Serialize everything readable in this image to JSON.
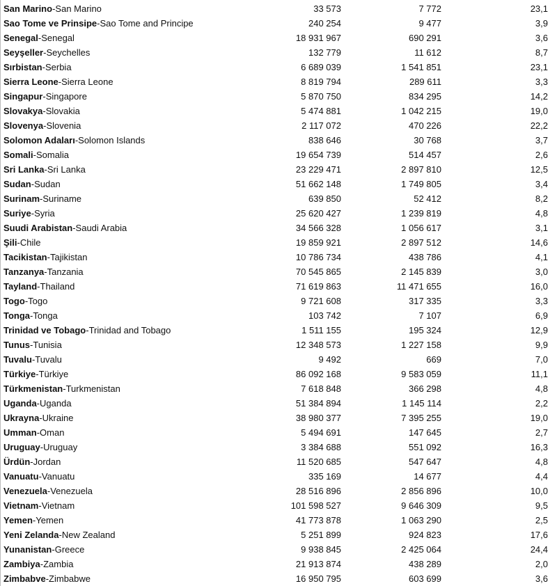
{
  "table": {
    "rows": [
      {
        "tr": "San Marino",
        "en": "San Marino",
        "population": "33 573",
        "value": "7 772",
        "percent": "23,1"
      },
      {
        "tr": "Sao Tome ve Prinsipe",
        "en": "Sao Tome and Principe",
        "population": "240 254",
        "value": "9 477",
        "percent": "3,9"
      },
      {
        "tr": "Senegal",
        "en": "Senegal",
        "population": "18 931 967",
        "value": "690 291",
        "percent": "3,6"
      },
      {
        "tr": "Seyşeller",
        "en": "Seychelles",
        "population": "132 779",
        "value": "11 612",
        "percent": "8,7"
      },
      {
        "tr": "Sırbistan",
        "en": "Serbia",
        "population": "6 689 039",
        "value": "1 541 851",
        "percent": "23,1"
      },
      {
        "tr": "Sierra Leone",
        "en": "Sierra Leone",
        "population": "8 819 794",
        "value": "289 611",
        "percent": "3,3"
      },
      {
        "tr": "Singapur",
        "en": "Singapore",
        "population": "5 870 750",
        "value": "834 295",
        "percent": "14,2"
      },
      {
        "tr": "Slovakya",
        "en": "Slovakia",
        "population": "5 474 881",
        "value": "1 042 215",
        "percent": "19,0"
      },
      {
        "tr": "Slovenya",
        "en": "Slovenia",
        "population": "2 117 072",
        "value": "470 226",
        "percent": "22,2"
      },
      {
        "tr": "Solomon Adaları",
        "en": "Solomon Islands",
        "population": "838 646",
        "value": "30 768",
        "percent": "3,7"
      },
      {
        "tr": "Somali",
        "en": "Somalia",
        "population": "19 654 739",
        "value": "514 457",
        "percent": "2,6"
      },
      {
        "tr": "Sri Lanka",
        "en": "Sri Lanka",
        "population": "23 229 471",
        "value": "2 897 810",
        "percent": "12,5"
      },
      {
        "tr": "Sudan",
        "en": "Sudan",
        "population": "51 662 148",
        "value": "1 749 805",
        "percent": "3,4"
      },
      {
        "tr": "Surinam",
        "en": "Suriname",
        "population": "639 850",
        "value": "52 412",
        "percent": "8,2"
      },
      {
        "tr": "Suriye",
        "en": "Syria",
        "population": "25 620 427",
        "value": "1 239 819",
        "percent": "4,8"
      },
      {
        "tr": "Suudi Arabistan",
        "en": "Saudi Arabia",
        "population": "34 566 328",
        "value": "1 056 617",
        "percent": "3,1"
      },
      {
        "tr": "Şili",
        "en": "Chile",
        "population": "19 859 921",
        "value": "2 897 512",
        "percent": "14,6"
      },
      {
        "tr": "Tacikistan",
        "en": "Tajikistan",
        "population": "10 786 734",
        "value": "438 786",
        "percent": "4,1"
      },
      {
        "tr": "Tanzanya",
        "en": "Tanzania",
        "population": "70 545 865",
        "value": "2 145 839",
        "percent": "3,0"
      },
      {
        "tr": "Tayland",
        "en": "Thailand",
        "population": "71 619 863",
        "value": "11 471 655",
        "percent": "16,0"
      },
      {
        "tr": "Togo",
        "en": "Togo",
        "population": "9 721 608",
        "value": "317 335",
        "percent": "3,3"
      },
      {
        "tr": "Tonga",
        "en": "Tonga",
        "population": "103 742",
        "value": "7 107",
        "percent": "6,9"
      },
      {
        "tr": "Trinidad ve Tobago",
        "en": "Trinidad and Tobago",
        "population": "1 511 155",
        "value": "195 324",
        "percent": "12,9"
      },
      {
        "tr": "Tunus",
        "en": "Tunisia",
        "population": "12 348 573",
        "value": "1 227 158",
        "percent": "9,9"
      },
      {
        "tr": "Tuvalu",
        "en": "Tuvalu",
        "population": "9 492",
        "value": "669",
        "percent": "7,0"
      },
      {
        "tr": "Türkiye",
        "en": "Türkiye",
        "population": "86 092 168",
        "value": "9 583 059",
        "percent": "11,1"
      },
      {
        "tr": "Türkmenistan",
        "en": "Turkmenistan",
        "population": "7 618 848",
        "value": "366 298",
        "percent": "4,8"
      },
      {
        "tr": "Uganda",
        "en": "Uganda",
        "population": "51 384 894",
        "value": "1 145 114",
        "percent": "2,2"
      },
      {
        "tr": "Ukrayna",
        "en": "Ukraine",
        "population": "38 980 377",
        "value": "7 395 255",
        "percent": "19,0"
      },
      {
        "tr": "Umman",
        "en": "Oman",
        "population": "5 494 691",
        "value": "147 645",
        "percent": "2,7"
      },
      {
        "tr": "Uruguay",
        "en": "Uruguay",
        "population": "3 384 688",
        "value": "551 092",
        "percent": "16,3"
      },
      {
        "tr": "Ürdün",
        "en": "Jordan",
        "population": "11 520 685",
        "value": "547 647",
        "percent": "4,8"
      },
      {
        "tr": "Vanuatu",
        "en": "Vanuatu",
        "population": "335 169",
        "value": "14 677",
        "percent": "4,4"
      },
      {
        "tr": "Venezuela",
        "en": "Venezuela",
        "population": "28 516 896",
        "value": "2 856 896",
        "percent": "10,0"
      },
      {
        "tr": "Vietnam",
        "en": "Vietnam",
        "population": "101 598 527",
        "value": "9 646 309",
        "percent": "9,5"
      },
      {
        "tr": "Yemen",
        "en": "Yemen",
        "population": "41 773 878",
        "value": "1 063 290",
        "percent": "2,5"
      },
      {
        "tr": "Yeni Zelanda",
        "en": "New Zealand",
        "population": "5 251 899",
        "value": "924 823",
        "percent": "17,6"
      },
      {
        "tr": "Yunanistan",
        "en": "Greece",
        "population": "9 938 845",
        "value": "2 425 064",
        "percent": "24,4"
      },
      {
        "tr": "Zambiya",
        "en": "Zambia",
        "population": "21 913 874",
        "value": "438 289",
        "percent": "2,0"
      },
      {
        "tr": "Zimbabve",
        "en": "Zimbabwe",
        "population": "16 950 795",
        "value": "603 699",
        "percent": "3,6"
      }
    ]
  }
}
